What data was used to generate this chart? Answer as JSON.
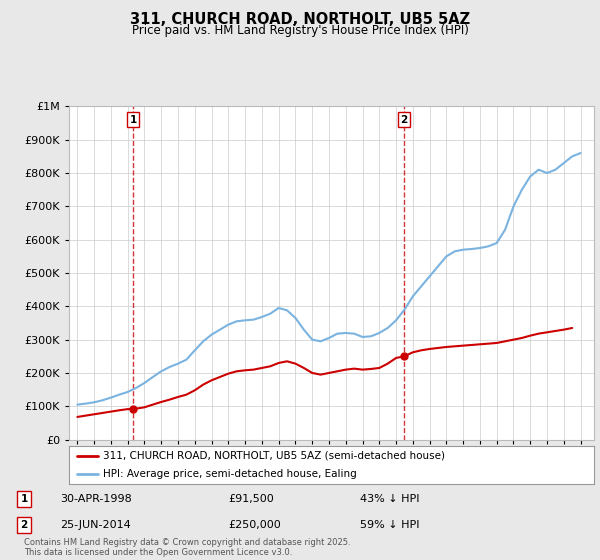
{
  "title": "311, CHURCH ROAD, NORTHOLT, UB5 5AZ",
  "subtitle": "Price paid vs. HM Land Registry's House Price Index (HPI)",
  "legend_line1": "311, CHURCH ROAD, NORTHOLT, UB5 5AZ (semi-detached house)",
  "legend_line2": "HPI: Average price, semi-detached house, Ealing",
  "annotation1_label": "1",
  "annotation1_date": "30-APR-1998",
  "annotation1_price": "£91,500",
  "annotation1_hpi": "43% ↓ HPI",
  "annotation2_label": "2",
  "annotation2_date": "25-JUN-2014",
  "annotation2_price": "£250,000",
  "annotation2_hpi": "59% ↓ HPI",
  "footer": "Contains HM Land Registry data © Crown copyright and database right 2025.\nThis data is licensed under the Open Government Licence v3.0.",
  "hpi_color": "#7ab3e0",
  "price_color": "#cc0000",
  "vline_color": "#cc0000",
  "background_color": "#e8e8e8",
  "plot_background": "#ffffff",
  "ylim": [
    0,
    1000000
  ],
  "xlim_start": 1994.5,
  "xlim_end": 2025.8,
  "hpi_years": [
    1995.0,
    1995.5,
    1996.0,
    1996.5,
    1997.0,
    1997.5,
    1998.0,
    1998.5,
    1999.0,
    1999.5,
    2000.0,
    2000.5,
    2001.0,
    2001.5,
    2002.0,
    2002.5,
    2003.0,
    2003.5,
    2004.0,
    2004.5,
    2005.0,
    2005.5,
    2006.0,
    2006.5,
    2007.0,
    2007.5,
    2008.0,
    2008.5,
    2009.0,
    2009.5,
    2010.0,
    2010.5,
    2011.0,
    2011.5,
    2012.0,
    2012.5,
    2013.0,
    2013.5,
    2014.0,
    2014.5,
    2015.0,
    2015.5,
    2016.0,
    2016.5,
    2017.0,
    2017.5,
    2018.0,
    2018.5,
    2019.0,
    2019.5,
    2020.0,
    2020.5,
    2021.0,
    2021.5,
    2022.0,
    2022.5,
    2023.0,
    2023.5,
    2024.0,
    2024.5,
    2025.0
  ],
  "hpi_values": [
    105000,
    108000,
    112000,
    118000,
    126000,
    135000,
    143000,
    155000,
    170000,
    188000,
    205000,
    218000,
    228000,
    240000,
    268000,
    295000,
    315000,
    330000,
    345000,
    355000,
    358000,
    360000,
    368000,
    378000,
    395000,
    388000,
    365000,
    330000,
    300000,
    295000,
    305000,
    318000,
    320000,
    318000,
    308000,
    310000,
    320000,
    335000,
    358000,
    390000,
    430000,
    460000,
    490000,
    520000,
    550000,
    565000,
    570000,
    572000,
    575000,
    580000,
    590000,
    630000,
    700000,
    750000,
    790000,
    810000,
    800000,
    810000,
    830000,
    850000,
    860000
  ],
  "price_years": [
    1995.0,
    1995.5,
    1996.0,
    1996.5,
    1997.0,
    1997.5,
    1998.0,
    1998.33,
    1999.0,
    1999.5,
    2000.0,
    2000.5,
    2001.0,
    2001.5,
    2002.0,
    2002.5,
    2003.0,
    2003.5,
    2004.0,
    2004.5,
    2005.0,
    2005.5,
    2006.0,
    2006.5,
    2007.0,
    2007.5,
    2008.0,
    2008.5,
    2009.0,
    2009.5,
    2010.0,
    2010.5,
    2011.0,
    2011.5,
    2012.0,
    2012.5,
    2013.0,
    2013.5,
    2014.0,
    2014.48,
    2015.0,
    2015.5,
    2016.0,
    2016.5,
    2017.0,
    2017.5,
    2018.0,
    2018.5,
    2019.0,
    2019.5,
    2020.0,
    2020.5,
    2021.0,
    2021.5,
    2022.0,
    2022.5,
    2023.0,
    2023.5,
    2024.0,
    2024.5
  ],
  "price_values": [
    68000,
    72000,
    76000,
    80000,
    84000,
    88000,
    91500,
    91500,
    97000,
    105000,
    113000,
    120000,
    128000,
    135000,
    148000,
    165000,
    178000,
    188000,
    198000,
    205000,
    208000,
    210000,
    215000,
    220000,
    230000,
    235000,
    228000,
    215000,
    200000,
    195000,
    200000,
    205000,
    210000,
    213000,
    210000,
    212000,
    215000,
    228000,
    245000,
    250000,
    262000,
    268000,
    272000,
    275000,
    278000,
    280000,
    282000,
    284000,
    286000,
    288000,
    290000,
    295000,
    300000,
    305000,
    312000,
    318000,
    322000,
    326000,
    330000,
    335000
  ],
  "sale1_year": 1998.33,
  "sale1_price": 91500,
  "sale2_year": 2014.48,
  "sale2_price": 250000
}
